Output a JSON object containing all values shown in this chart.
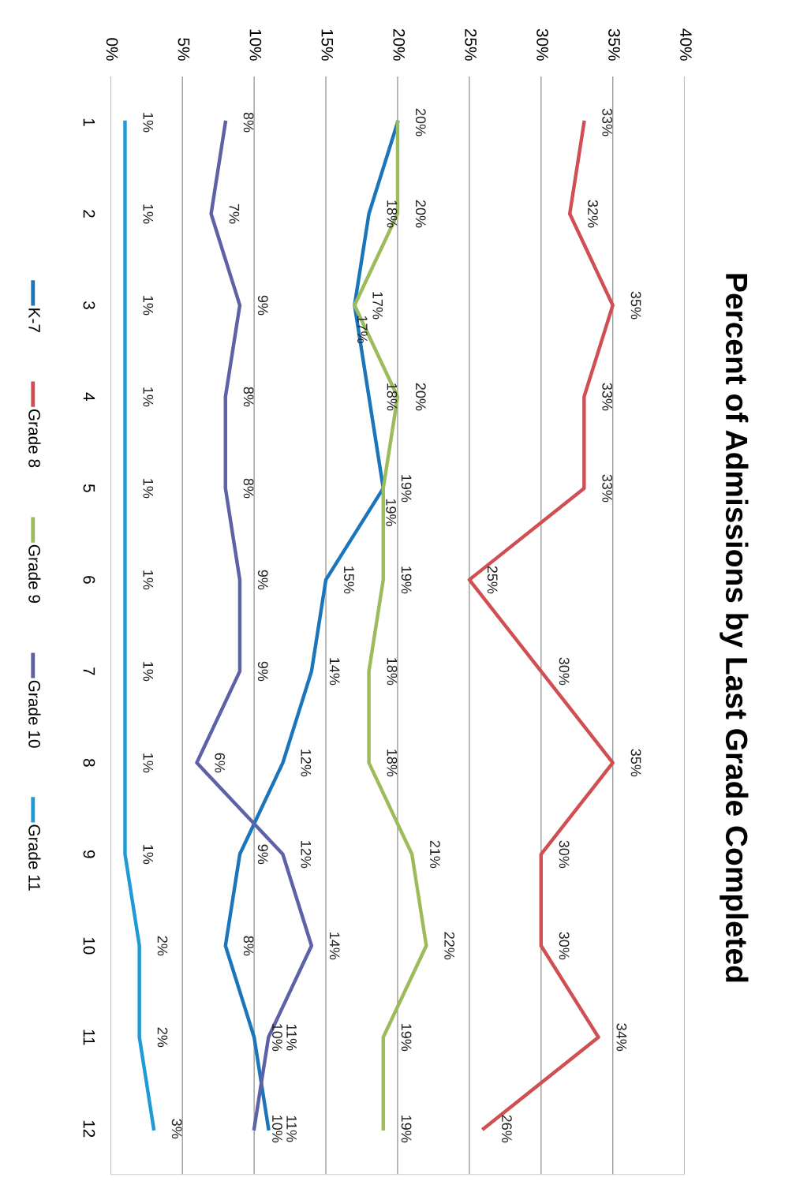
{
  "chart_data": {
    "type": "line",
    "orientation": "horizontal",
    "title": "Percent of Admissions by Last Grade Completed",
    "categories": [
      "1",
      "2",
      "3",
      "4",
      "5",
      "6",
      "7",
      "8",
      "9",
      "10",
      "11",
      "12"
    ],
    "series": [
      {
        "name": "K-7",
        "color": "#1b75bb",
        "values": [
          20,
          18,
          17,
          18,
          19,
          15,
          14,
          12,
          9,
          8,
          10,
          11
        ],
        "value_labels": [
          null,
          "18%",
          "17%",
          "18%",
          "19%",
          "15%",
          "14%",
          "12%",
          "9%",
          "8%",
          "10%",
          "11%"
        ]
      },
      {
        "name": "Grade 8",
        "color": "#cf4f52",
        "values": [
          33,
          32,
          35,
          33,
          33,
          25,
          30,
          35,
          30,
          30,
          34,
          26
        ],
        "value_labels": [
          "33%",
          "32%",
          "35%",
          "33%",
          "33%",
          "25%",
          "30%",
          "35%",
          "30%",
          "30%",
          "34%",
          "26%"
        ]
      },
      {
        "name": "Grade 9",
        "color": "#9cbb5b",
        "values": [
          20,
          20,
          17,
          20,
          19,
          19,
          18,
          18,
          21,
          22,
          19,
          19
        ],
        "value_labels": [
          "20%",
          "20%",
          "17%",
          "20%",
          "19%",
          "19%",
          "18%",
          "18%",
          "21%",
          "22%",
          "19%",
          "19%"
        ]
      },
      {
        "name": "Grade 10",
        "color": "#5d62a6",
        "values": [
          8,
          7,
          9,
          8,
          8,
          9,
          9,
          6,
          12,
          14,
          11,
          10
        ],
        "value_labels": [
          "8%",
          "7%",
          "9%",
          "8%",
          "8%",
          "9%",
          "9%",
          "6%",
          "12%",
          "14%",
          "11%",
          "10%"
        ]
      },
      {
        "name": "Grade 11",
        "color": "#1e9ad6",
        "values": [
          1,
          1,
          1,
          1,
          1,
          1,
          1,
          1,
          1,
          2,
          2,
          3
        ],
        "value_labels": [
          "1%",
          "1%",
          "1%",
          "1%",
          "1%",
          "1%",
          "1%",
          "1%",
          "1%",
          "2%",
          "2%",
          "3%"
        ]
      }
    ],
    "xlim": [
      0,
      40
    ],
    "xticks": [
      {
        "value": 0,
        "label": "0%"
      },
      {
        "value": 5,
        "label": "5%"
      },
      {
        "value": 10,
        "label": "10%"
      },
      {
        "value": 15,
        "label": "15%"
      },
      {
        "value": 20,
        "label": "20%"
      },
      {
        "value": 25,
        "label": "25%"
      },
      {
        "value": 30,
        "label": "30%"
      },
      {
        "value": 35,
        "label": "35%"
      },
      {
        "value": 40,
        "label": "40%"
      }
    ],
    "grid": "x",
    "legend": "left",
    "marker": "none",
    "line_style": "solid"
  }
}
